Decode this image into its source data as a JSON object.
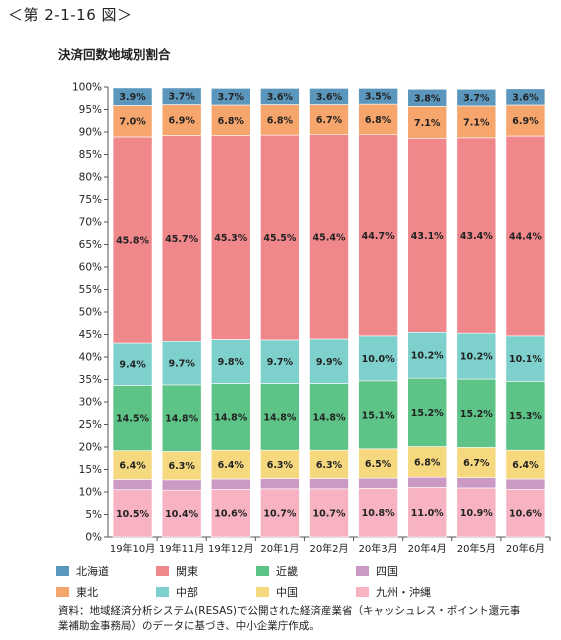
{
  "figure_label": "＜第 2-1-16 図＞",
  "chart_data": {
    "type": "bar",
    "stacked": true,
    "title": "決済回数地域別割合",
    "categories": [
      "19年10月",
      "19年11月",
      "19年12月",
      "20年1月",
      "20年2月",
      "20年3月",
      "20年4月",
      "20年5月",
      "20年6月"
    ],
    "y_ticks": [
      "0%",
      "5%",
      "10%",
      "15%",
      "20%",
      "25%",
      "30%",
      "35%",
      "40%",
      "45%",
      "50%",
      "55%",
      "60%",
      "65%",
      "70%",
      "75%",
      "80%",
      "85%",
      "90%",
      "95%",
      "100%"
    ],
    "ylim": [
      0,
      100
    ],
    "series": [
      {
        "name": "九州・沖縄",
        "color": "#f7b3c2",
        "values": [
          10.5,
          10.4,
          10.6,
          10.7,
          10.7,
          10.8,
          11.0,
          10.9,
          10.6
        ],
        "labels": [
          "10.5%",
          "10.4%",
          "10.6%",
          "10.7%",
          "10.7%",
          "10.8%",
          "11.0%",
          "10.9%",
          "10.6%"
        ]
      },
      {
        "name": "四国",
        "color": "#cc99c4",
        "values": [
          2.3,
          2.3,
          2.3,
          2.3,
          2.3,
          2.3,
          2.3,
          2.3,
          2.3
        ],
        "labels": []
      },
      {
        "name": "中国",
        "color": "#f6d87e",
        "values": [
          6.4,
          6.3,
          6.4,
          6.3,
          6.3,
          6.5,
          6.8,
          6.7,
          6.4
        ],
        "labels": [
          "6.4%",
          "6.3%",
          "6.4%",
          "6.3%",
          "6.3%",
          "6.5%",
          "6.8%",
          "6.7%",
          "6.4%"
        ]
      },
      {
        "name": "近畿",
        "color": "#5dc386",
        "values": [
          14.5,
          14.8,
          14.8,
          14.8,
          14.8,
          15.1,
          15.2,
          15.2,
          15.3
        ],
        "labels": [
          "14.5%",
          "14.8%",
          "14.8%",
          "14.8%",
          "14.8%",
          "15.1%",
          "15.2%",
          "15.2%",
          "15.3%"
        ]
      },
      {
        "name": "中部",
        "color": "#7dd0cb",
        "values": [
          9.4,
          9.7,
          9.8,
          9.7,
          9.9,
          10.0,
          10.2,
          10.2,
          10.1
        ],
        "labels": [
          "9.4%",
          "9.7%",
          "9.8%",
          "9.7%",
          "9.9%",
          "10.0%",
          "10.2%",
          "10.2%",
          "10.1%"
        ]
      },
      {
        "name": "関東",
        "color": "#f0878b",
        "values": [
          45.8,
          45.7,
          45.3,
          45.5,
          45.4,
          44.7,
          43.1,
          43.4,
          44.4
        ],
        "labels": [
          "45.8%",
          "45.7%",
          "45.3%",
          "45.5%",
          "45.4%",
          "44.7%",
          "43.1%",
          "43.4%",
          "44.4%"
        ]
      },
      {
        "name": "東北",
        "color": "#f6a56c",
        "values": [
          7.0,
          6.9,
          6.8,
          6.8,
          6.7,
          6.8,
          7.1,
          7.1,
          6.9
        ],
        "labels": [
          "7.0%",
          "6.9%",
          "6.8%",
          "6.8%",
          "6.7%",
          "6.8%",
          "7.1%",
          "7.1%",
          "6.9%"
        ]
      },
      {
        "name": "北海道",
        "color": "#5b97bd",
        "values": [
          3.9,
          3.7,
          3.7,
          3.6,
          3.6,
          3.5,
          3.8,
          3.7,
          3.6
        ],
        "labels": [
          "3.9%",
          "3.7%",
          "3.7%",
          "3.6%",
          "3.6%",
          "3.5%",
          "3.8%",
          "3.7%",
          "3.6%"
        ]
      }
    ],
    "legend_order": [
      "北海道",
      "関東",
      "近畿",
      "四国",
      "東北",
      "中部",
      "中国",
      "九州・沖縄"
    ],
    "legend_position": "bottom"
  },
  "source_note": "資料：地域経済分析システム(RESAS)で公開された経済産業省（キャッシュレス・ポイント還元事業補助金事務局）のデータに基づき、中小企業庁作成。"
}
